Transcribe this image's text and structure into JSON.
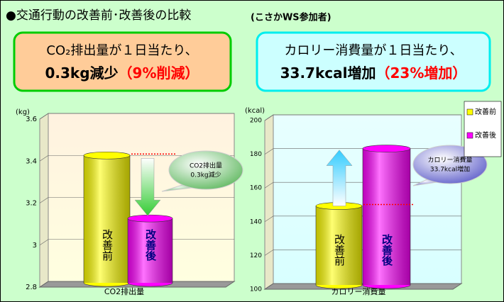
{
  "header": {
    "title": "●交通行動の改善前･改善後の比較",
    "subtitle": "(こさかWS参加者)"
  },
  "summary": [
    {
      "line1": "CO₂排出量が１日当たり、",
      "amount": "0.3kg減少",
      "change": "（9%削減）"
    },
    {
      "line1": "カロリー消費量が１日当たり、",
      "amount": "33.7kcal増加",
      "change": "（23%増加）"
    }
  ],
  "chart_data": [
    {
      "type": "bar",
      "unit": "(kg)",
      "x_label": "CO2排出量",
      "categories": [
        "改善前",
        "改善後"
      ],
      "values": [
        3.4,
        3.1
      ],
      "colors": [
        "#ffff00",
        "#ff00ff"
      ],
      "ylim": [
        2.8,
        3.6
      ],
      "yticks": [
        2.8,
        3,
        3.2,
        3.4,
        3.6
      ],
      "grid": true,
      "annotation": [
        "CO2排出量",
        "0.3kg減少"
      ]
    },
    {
      "type": "bar",
      "unit": "(kcal)",
      "x_label": "カロリー消費量",
      "categories": [
        "改善前",
        "改善後"
      ],
      "values": [
        146,
        180
      ],
      "colors": [
        "#ffff00",
        "#ff00ff"
      ],
      "ylim": [
        100,
        200
      ],
      "yticks": [
        100,
        120,
        140,
        160,
        180,
        200
      ],
      "grid": true,
      "annotation": [
        "カロリー消費量",
        "33.7kcal増加"
      ],
      "legend": [
        {
          "name": "改善前",
          "color": "#ffff00"
        },
        {
          "name": "改善後",
          "color": "#ff00ff"
        }
      ]
    }
  ]
}
